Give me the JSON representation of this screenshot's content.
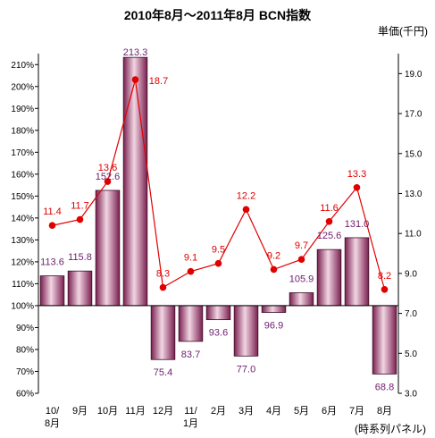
{
  "chart_data": {
    "type": "bar+line",
    "title": "2010年8月～2011年8月 BCN指数",
    "y2label": "単価(千円)",
    "note": "(時系列パネル)",
    "categories": [
      "10/\n8月",
      "9月",
      "10月",
      "11月",
      "12月",
      "11/\n1月",
      "2月",
      "3月",
      "4月",
      "5月",
      "6月",
      "7月",
      "8月"
    ],
    "bar_series": {
      "values": [
        113.6,
        115.8,
        152.6,
        213.3,
        75.4,
        83.7,
        93.6,
        77.0,
        96.9,
        105.9,
        125.6,
        131.0,
        68.8
      ],
      "labels": [
        "113.6",
        "115.8",
        "152.6",
        "213.3",
        "75.4",
        "83.7",
        "93.6",
        "77.0",
        "96.9",
        "105.9",
        "125.6",
        "131.0",
        "68.8"
      ],
      "baseline": 100,
      "color": "#9b3a6e"
    },
    "line_series": {
      "values": [
        11.4,
        11.7,
        13.6,
        18.7,
        8.3,
        9.1,
        9.5,
        12.2,
        9.2,
        9.7,
        11.6,
        13.3,
        8.2
      ],
      "labels": [
        "11.4",
        "11.7",
        "13.6",
        "18.7",
        "8.3",
        "9.1",
        "9.5",
        "12.2",
        "9.2",
        "9.7",
        "11.6",
        "13.3",
        "8.2"
      ],
      "color": "#e00000"
    },
    "y_left": {
      "range": [
        60,
        210
      ],
      "ticks": [
        60,
        70,
        80,
        90,
        100,
        110,
        120,
        130,
        140,
        150,
        160,
        170,
        180,
        190,
        200,
        210
      ],
      "tick_labels": [
        "60%",
        "70%",
        "80%",
        "90%",
        "100%",
        "110%",
        "120%",
        "130%",
        "140%",
        "150%",
        "160%",
        "170%",
        "180%",
        "190%",
        "200%",
        "210%"
      ]
    },
    "y_right": {
      "range": [
        3.0,
        20.0
      ],
      "ticks": [
        3.0,
        5.0,
        7.0,
        9.0,
        11.0,
        13.0,
        15.0,
        17.0,
        19.0
      ],
      "tick_labels": [
        "3.0",
        "5.0",
        "7.0",
        "9.0",
        "11.0",
        "13.0",
        "15.0",
        "17.0",
        "19.0"
      ]
    },
    "grid": false,
    "legend": "none"
  }
}
